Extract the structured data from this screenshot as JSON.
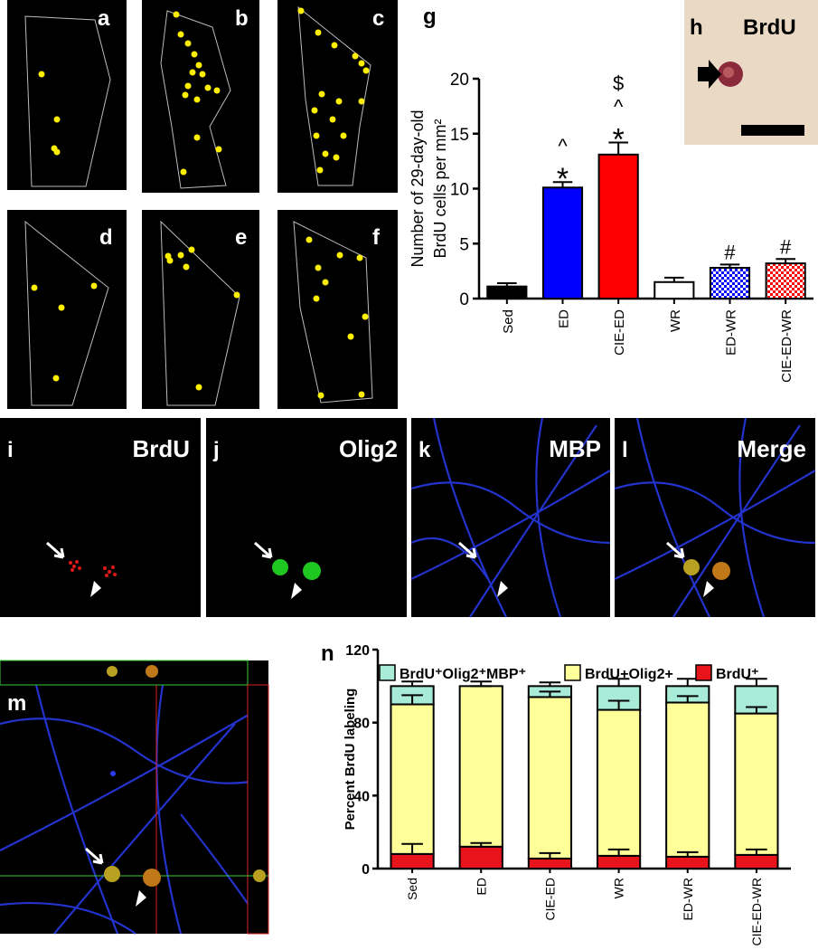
{
  "labels": {
    "a": "a",
    "b": "b",
    "c": "c",
    "d": "d",
    "e": "e",
    "f": "f",
    "g": "g",
    "h": "h",
    "h_stain": "BrdU",
    "i": "i",
    "i_stain": "BrdU",
    "j": "j",
    "j_stain": "Olig2",
    "k": "k",
    "k_stain": "MBP",
    "l": "l",
    "l_stain": "Merge",
    "m": "m",
    "n": "n"
  },
  "chart_data": [
    {
      "type": "bar",
      "ylabel": [
        "Number of 29-day-old",
        "BrdU  cells per mm²"
      ],
      "categories": [
        "Sed",
        "ED",
        "CIE-ED",
        "WR",
        "ED-WR",
        "CIE-ED-WR"
      ],
      "values": [
        1.1,
        10.1,
        13.1,
        1.5,
        2.8,
        3.2
      ],
      "errors": [
        0.3,
        0.5,
        1.1,
        0.4,
        0.3,
        0.4
      ],
      "colors": [
        "#000000",
        "#0000ff",
        "#ff0000",
        "#ffffff",
        "#0000ff",
        "#ff0000"
      ],
      "patterns": [
        false,
        false,
        false,
        false,
        true,
        true
      ],
      "markers": [
        [],
        [
          "^",
          "*"
        ],
        [
          "$",
          "^",
          "*"
        ],
        [],
        [
          "#"
        ],
        [
          "#"
        ]
      ],
      "ylim": [
        0,
        20
      ],
      "yticks": [
        0,
        5,
        10,
        15,
        20
      ]
    },
    {
      "type": "stacked_bar",
      "ylabel": "Percent BrdU labeling",
      "categories": [
        "Sed",
        "ED",
        "CIE-ED",
        "WR",
        "ED-WR",
        "CIE-ED-WR"
      ],
      "series": [
        {
          "name": "BrdU⁺",
          "color": "#e8141c",
          "values": [
            8,
            12,
            5.5,
            7,
            6.5,
            7.5
          ],
          "errors": [
            5.5,
            2,
            3,
            3.5,
            2.5,
            3
          ]
        },
        {
          "name": "BrdU+Olig2+",
          "color": "#ffff99",
          "values": [
            82,
            88,
            88.5,
            80,
            84.5,
            77.5
          ],
          "errors": [
            5,
            0,
            3,
            5,
            3.5,
            3.5
          ]
        },
        {
          "name": "BrdU⁺Olig2⁺MBP⁺",
          "color": "#a8ecd8",
          "values": [
            10,
            0,
            6,
            13,
            9,
            15
          ],
          "errors": [
            2.5,
            2.5,
            2,
            4,
            4,
            4
          ]
        }
      ],
      "ylim": [
        0,
        120
      ],
      "yticks": [
        0,
        40,
        80,
        120
      ],
      "legend": "top"
    }
  ]
}
